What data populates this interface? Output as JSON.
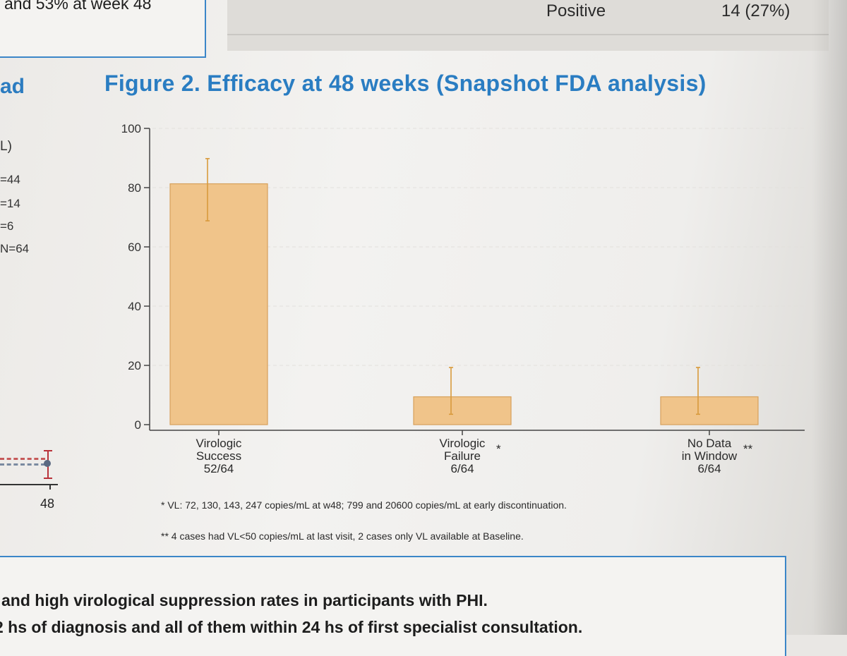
{
  "top_left_box": {
    "text": "and 53% at week 48"
  },
  "top_table": {
    "label": "Positive",
    "value": "14 (27%)"
  },
  "left_panel": {
    "heading": "ad",
    "axis_unit": "L)",
    "rows": [
      "=44",
      "=14",
      "=6",
      "N=64"
    ],
    "mini_plot_tick": "48"
  },
  "figure": {
    "title": "Figure 2. Efficacy at 48 weeks (Snapshot FDA analysis)"
  },
  "chart_data": {
    "type": "bar",
    "title": "Figure 2. Efficacy at 48 weeks (Snapshot FDA analysis)",
    "xlabel": "",
    "ylabel": "",
    "ylim": [
      0,
      100
    ],
    "yticks": [
      0,
      20,
      40,
      60,
      80,
      100
    ],
    "categories": [
      {
        "lines": [
          "Virologic",
          "Success",
          "52/64"
        ],
        "marker": ""
      },
      {
        "lines": [
          "Virologic",
          "Failure",
          "6/64"
        ],
        "marker": "*"
      },
      {
        "lines": [
          "No Data",
          "in Window",
          "6/64"
        ],
        "marker": "**"
      }
    ],
    "values": [
      81.3,
      9.4,
      9.4
    ],
    "error_low": [
      68.8,
      3.5,
      3.5
    ],
    "error_high": [
      89.8,
      19.3,
      19.3
    ],
    "bar_color": "#f0c48a",
    "bar_edge_color": "#d7a15c",
    "error_color": "#d89a3c",
    "grid": true
  },
  "footnotes": {
    "note1": "* VL: 72, 130, 143, 247 copies/mL at w48; 799 and 20600 copies/mL at early discontinuation.",
    "note2": "** 4 cases had VL<50 copies/mL at last visit, 2 cases only VL available at Baseline."
  },
  "conclusions": {
    "line1": "and high virological suppression rates in participants with PHI.",
    "line2": "2 hs of diagnosis and all of them within 24 hs of first specialist consultation."
  }
}
